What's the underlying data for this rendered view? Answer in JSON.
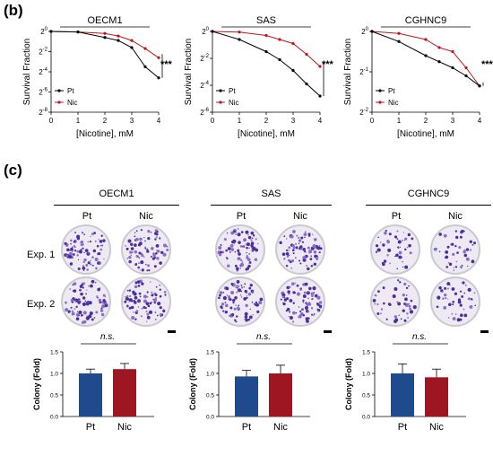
{
  "panel_b": {
    "letter": "(b)",
    "charts": [
      {
        "title": "OECM1",
        "yticks": [
          "2^0",
          "2^-2",
          "2^-4",
          "2^-6",
          "2^-8"
        ],
        "sig": "***",
        "pt": [
          [
            0,
            0
          ],
          [
            1,
            -0.05
          ],
          [
            2,
            -0.6
          ],
          [
            2.5,
            -0.9
          ],
          [
            3,
            -1.6
          ],
          [
            3.5,
            -3.5
          ],
          [
            4,
            -4.6
          ]
        ],
        "nic": [
          [
            0,
            0
          ],
          [
            1,
            -0.05
          ],
          [
            2,
            -0.2
          ],
          [
            2.5,
            -0.45
          ],
          [
            3,
            -0.9
          ],
          [
            3.5,
            -1.7
          ],
          [
            4,
            -2.6
          ]
        ]
      },
      {
        "title": "SAS",
        "yticks": [
          "2^0",
          "2^-2",
          "2^-4",
          "2^-6"
        ],
        "sig": "***",
        "pt": [
          [
            0,
            0
          ],
          [
            1,
            -0.6
          ],
          [
            2,
            -1.5
          ],
          [
            2.5,
            -2.1
          ],
          [
            3,
            -2.9
          ],
          [
            3.5,
            -3.9
          ],
          [
            4,
            -4.8
          ]
        ],
        "nic": [
          [
            0,
            0
          ],
          [
            1,
            -0.05
          ],
          [
            2,
            -0.3
          ],
          [
            2.5,
            -0.6
          ],
          [
            3,
            -0.9
          ],
          [
            3.5,
            -1.7
          ],
          [
            4,
            -2.6
          ]
        ]
      },
      {
        "title": "CGHNC9",
        "yticks": [
          "2^0",
          "2^-1",
          "2^-2"
        ],
        "sig": "***",
        "pt": [
          [
            0,
            0
          ],
          [
            1,
            -0.25
          ],
          [
            2,
            -0.6
          ],
          [
            2.5,
            -0.75
          ],
          [
            3,
            -0.9
          ],
          [
            3.5,
            -1.1
          ],
          [
            4,
            -1.35
          ]
        ],
        "nic": [
          [
            0,
            0
          ],
          [
            1,
            -0.05
          ],
          [
            2,
            -0.2
          ],
          [
            2.5,
            -0.4
          ],
          [
            3,
            -0.5
          ],
          [
            3.5,
            -0.9
          ],
          [
            4,
            -1.35
          ]
        ]
      }
    ],
    "xlabel": "[Nicotine], mM",
    "ylabel": "Survival Fraction",
    "xticks": [
      "0",
      "1",
      "2",
      "3",
      "4"
    ],
    "legend": {
      "pt": "Pt",
      "nic": "Nic"
    },
    "colors": {
      "pt": "#000000",
      "nic": "#c0151b"
    }
  },
  "panel_c": {
    "letter": "(c)",
    "cells": [
      "OECM1",
      "SAS",
      "CGHNC9"
    ],
    "col_labels": [
      "Pt",
      "Nic"
    ],
    "row_labels": [
      "Exp. 1",
      "Exp. 2"
    ],
    "stat_label": "n.s.",
    "ylabel": "Colony (Fold)",
    "yticks": [
      "0.0",
      "0.5",
      "1.0",
      "1.5"
    ],
    "bar_colors": {
      "pt": "#1f4b8e",
      "nic": "#9e1622"
    },
    "dish_colors": {
      "background": "#eeeaf3",
      "colony": "#4b2f9f",
      "colony_light": "#8a6cc9"
    }
  },
  "chart_data": [
    {
      "type": "line",
      "title": "OECM1",
      "xlabel": "[Nicotine], mM",
      "ylabel": "Survival Fraction",
      "y_scale": "log2",
      "xlim": [
        0,
        4
      ],
      "x": [
        0,
        1,
        2,
        2.5,
        3,
        3.5,
        4
      ],
      "series": [
        {
          "name": "Pt",
          "values": [
            1.0,
            0.97,
            0.66,
            0.54,
            0.33,
            0.09,
            0.04
          ]
        },
        {
          "name": "Nic",
          "values": [
            1.0,
            0.97,
            0.87,
            0.73,
            0.54,
            0.31,
            0.16
          ]
        }
      ]
    },
    {
      "type": "line",
      "title": "SAS",
      "xlabel": "[Nicotine], mM",
      "ylabel": "Survival Fraction",
      "y_scale": "log2",
      "xlim": [
        0,
        4
      ],
      "x": [
        0,
        1,
        2,
        2.5,
        3,
        3.5,
        4
      ],
      "series": [
        {
          "name": "Pt",
          "values": [
            1.0,
            0.66,
            0.35,
            0.23,
            0.13,
            0.07,
            0.04
          ]
        },
        {
          "name": "Nic",
          "values": [
            1.0,
            0.97,
            0.81,
            0.66,
            0.54,
            0.31,
            0.16
          ]
        }
      ]
    },
    {
      "type": "line",
      "title": "CGHNC9",
      "xlabel": "[Nicotine], mM",
      "ylabel": "Survival Fraction",
      "y_scale": "log2",
      "xlim": [
        0,
        4
      ],
      "x": [
        0,
        1,
        2,
        2.5,
        3,
        3.5,
        4
      ],
      "series": [
        {
          "name": "Pt",
          "values": [
            1.0,
            0.84,
            0.66,
            0.59,
            0.54,
            0.47,
            0.39
          ]
        },
        {
          "name": "Nic",
          "values": [
            1.0,
            0.97,
            0.87,
            0.76,
            0.71,
            0.54,
            0.39
          ]
        }
      ]
    },
    {
      "type": "bar",
      "title": "OECM1",
      "ylabel": "Colony (Fold)",
      "ylim": [
        0,
        1.5
      ],
      "categories": [
        "Pt",
        "Nic"
      ],
      "values": [
        1.0,
        1.1
      ],
      "errors": [
        0.1,
        0.13
      ]
    },
    {
      "type": "bar",
      "title": "SAS",
      "ylabel": "Colony (Fold)",
      "ylim": [
        0,
        1.5
      ],
      "categories": [
        "Pt",
        "Nic"
      ],
      "values": [
        0.93,
        1.0
      ],
      "errors": [
        0.14,
        0.19
      ]
    },
    {
      "type": "bar",
      "title": "CGHNC9",
      "ylabel": "Colony (Fold)",
      "ylim": [
        0,
        1.5
      ],
      "categories": [
        "Pt",
        "Nic"
      ],
      "values": [
        1.0,
        0.91
      ],
      "errors": [
        0.22,
        0.19
      ]
    }
  ]
}
